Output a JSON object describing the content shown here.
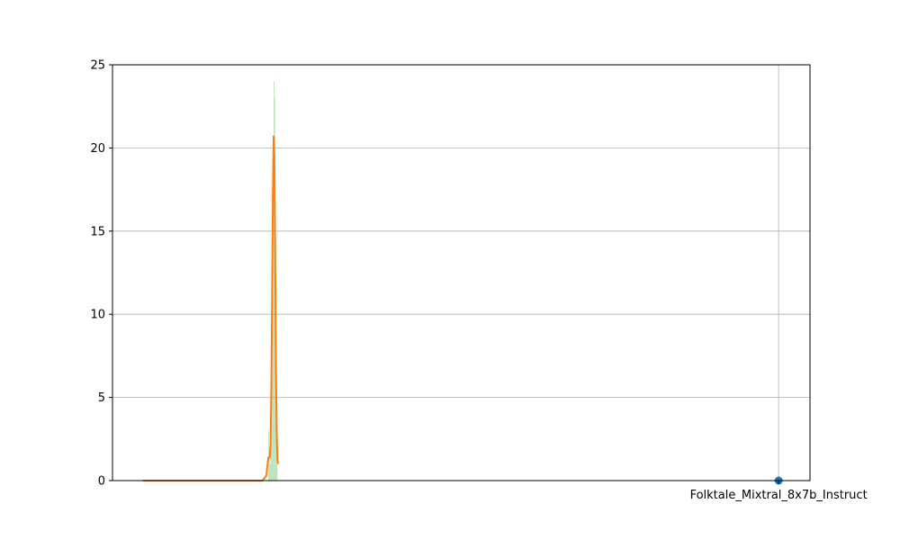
{
  "chart_data": {
    "type": "bar",
    "title": "",
    "xlabel": "",
    "ylabel": "",
    "ylim": [
      0,
      25
    ],
    "xlim": [
      -0.955,
      0.045
    ],
    "grid": true,
    "yticks": [
      0,
      5,
      10,
      15,
      20,
      25
    ],
    "xticks": [
      {
        "value": 0,
        "label": "Folktale_Mixtral_8x7b_Instruct"
      }
    ],
    "histogram": {
      "color": "#2ca02c",
      "alpha": 0.3,
      "bins": [
        {
          "x0": -0.7316,
          "x1": -0.7305,
          "value": 3
        },
        {
          "x0": -0.7305,
          "x1": -0.7295,
          "value": 2
        },
        {
          "x0": -0.7295,
          "x1": -0.7284,
          "value": 1
        },
        {
          "x0": -0.7284,
          "x1": -0.7273,
          "value": 3
        },
        {
          "x0": -0.7273,
          "x1": -0.7262,
          "value": 7
        },
        {
          "x0": -0.7262,
          "x1": -0.7251,
          "value": 12
        },
        {
          "x0": -0.7251,
          "x1": -0.724,
          "value": 18
        },
        {
          "x0": -0.724,
          "x1": -0.7229,
          "value": 24
        },
        {
          "x0": -0.7229,
          "x1": -0.7218,
          "value": 23
        },
        {
          "x0": -0.7218,
          "x1": -0.7207,
          "value": 14
        },
        {
          "x0": -0.7207,
          "x1": -0.7196,
          "value": 6
        },
        {
          "x0": -0.7196,
          "x1": -0.7185,
          "value": 1
        }
      ]
    },
    "kde": {
      "color": "#ff7f0e",
      "x": [
        -0.9117,
        -0.8,
        -0.74,
        -0.7345,
        -0.7316,
        -0.7295,
        -0.7284,
        -0.7273,
        -0.7262,
        -0.7251,
        -0.724,
        -0.7229,
        -0.7218,
        -0.7207,
        -0.7196,
        -0.7185,
        -0.7176
      ],
      "y": [
        0,
        0,
        0,
        0.3,
        1.4,
        1.4,
        2.2,
        5.5,
        11.0,
        17.0,
        20.7,
        19.5,
        14.0,
        7.0,
        3.0,
        1.2,
        1.0
      ]
    },
    "points": {
      "color": "#1f77b4",
      "values": [
        {
          "x": 0,
          "y": 0
        }
      ]
    }
  }
}
